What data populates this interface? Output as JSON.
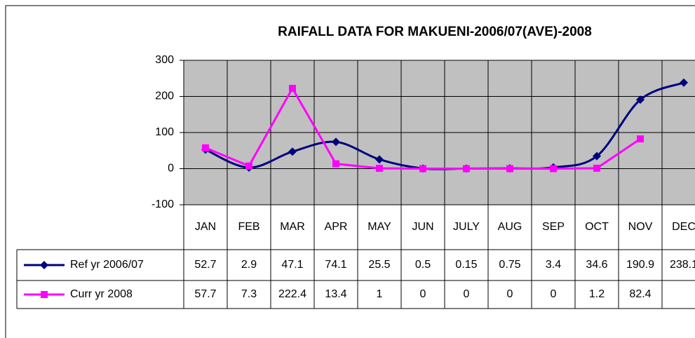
{
  "chart_data": {
    "type": "line",
    "title": "RAIFALL DATA FOR MAKUENI-2006/07(AVE)-2008",
    "categories": [
      "JAN",
      "FEB",
      "MAR",
      "APR",
      "MAY",
      "JUN",
      "JULY",
      "AUG",
      "SEP",
      "OCT",
      "NOV",
      "DEC"
    ],
    "series": [
      {
        "name": "Ref yr  2006/07",
        "color": "#000080",
        "marker": "diamond",
        "smooth": true,
        "values": [
          52.7,
          2.9,
          47.1,
          74.1,
          25.5,
          0.5,
          0.15,
          0.75,
          3.4,
          34.6,
          190.9,
          238.1
        ]
      },
      {
        "name": "Curr yr  2008",
        "color": "#ff00ff",
        "marker": "square",
        "smooth": false,
        "values": [
          57.7,
          7.3,
          222.4,
          13.4,
          1,
          0,
          0,
          0,
          0,
          1.2,
          82.4,
          null
        ]
      }
    ],
    "ylim": [
      -100,
      300
    ],
    "yticks": [
      -100,
      0,
      100,
      200,
      300
    ],
    "grid": true,
    "data_table": true
  }
}
